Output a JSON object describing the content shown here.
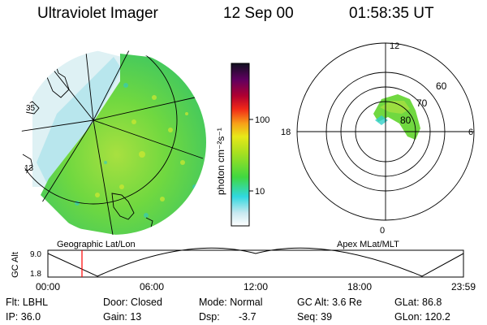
{
  "header": {
    "title": "Ultraviolet Imager",
    "date": "12 Sep 00",
    "time": "01:58:35 UT"
  },
  "colorbar": {
    "label": "photon cm⁻²s⁻¹",
    "ticks": [
      "100",
      "10"
    ]
  },
  "left_map": {
    "label": "Geographic Lat/Lon",
    "coast_labels": [
      "35",
      "13"
    ]
  },
  "right_map": {
    "label": "Apex MLat/MLT",
    "mlt_labels": [
      "12",
      "18",
      "6",
      "0"
    ],
    "lat_labels": [
      "60",
      "70",
      "80"
    ]
  },
  "timeline": {
    "ylabel": "GC Alt",
    "y_ticks": [
      "9.0",
      "1.8"
    ],
    "x_ticks": [
      "00:00",
      "06:00",
      "12:00",
      "18:00",
      "23:59"
    ],
    "marker_time": "01:58",
    "marker_color": "#ff0000"
  },
  "info": {
    "row1": [
      "Flt: LBHL",
      "Door: Closed",
      "Mode: Normal",
      "GC Alt: 3.6 Re",
      "GLat:  86.8"
    ],
    "row2": [
      "IP: 36.0",
      "Gain: 13",
      "Dsp:",
      "-3.7",
      "Seq: 39",
      "GLon: 120.2"
    ]
  }
}
